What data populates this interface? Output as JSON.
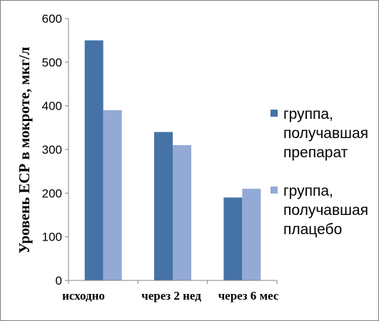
{
  "chart_data": {
    "type": "bar",
    "title": "",
    "xlabel": "",
    "ylabel": "Уровень ЕСР в мокроте, мкг/л",
    "ylim": [
      0,
      600
    ],
    "yticks": [
      0,
      100,
      200,
      300,
      400,
      500,
      600
    ],
    "grid": false,
    "legend_position": "right",
    "categories": [
      "исходно",
      "через 2 нед",
      "через 6 мес"
    ],
    "series": [
      {
        "name": "группа, получавшая препарат",
        "name_lines": [
          "группа,",
          "получавшая",
          "препарат"
        ],
        "color": "#4572a7",
        "values": [
          550,
          340,
          190
        ]
      },
      {
        "name": "группа, получавшая плацебо",
        "name_lines": [
          "группа,",
          "получавшая",
          "плацебо"
        ],
        "color": "#94aad6",
        "values": [
          390,
          310,
          210
        ]
      }
    ]
  }
}
